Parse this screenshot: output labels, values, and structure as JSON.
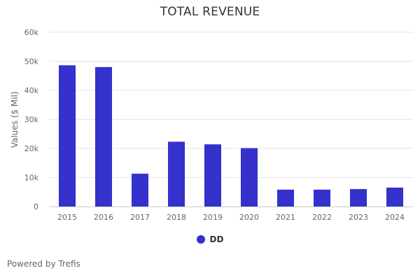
{
  "chart_data": {
    "type": "bar",
    "title": "TOTAL REVENUE",
    "xlabel": "",
    "ylabel": "Values ($ Mil)",
    "categories": [
      "2015",
      "2016",
      "2017",
      "2018",
      "2019",
      "2020",
      "2021",
      "2022",
      "2023",
      "2024"
    ],
    "series": [
      {
        "name": "DD",
        "values": [
          48600,
          48000,
          11300,
          22300,
          21400,
          20100,
          5800,
          5800,
          6000,
          6500
        ],
        "color": "#3431cc"
      }
    ],
    "ylim": [
      0,
      60000
    ],
    "yticks": [
      0,
      10000,
      20000,
      30000,
      40000,
      50000,
      60000
    ],
    "ytick_labels": [
      "0",
      "10k",
      "20k",
      "30k",
      "40k",
      "50k",
      "60k"
    ],
    "grid": true,
    "legend_position": "bottom-center"
  },
  "credits": "Powered by Trefis"
}
